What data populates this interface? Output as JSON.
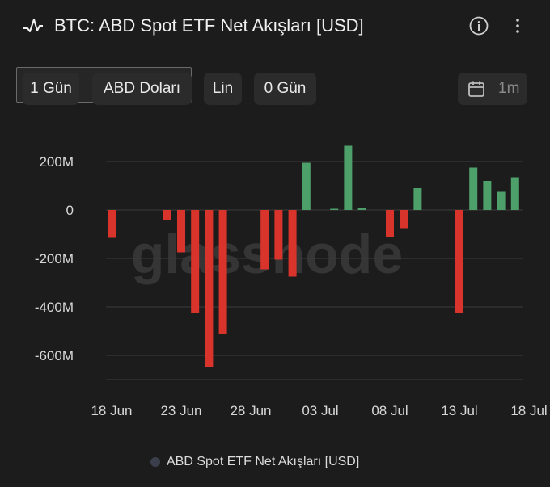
{
  "header": {
    "title": "BTC: ABD Spot ETF Net Akışları [USD]",
    "icons": [
      "pulse-icon",
      "info-icon",
      "more-icon"
    ]
  },
  "toolbar": {
    "interval_label": "1 Gün",
    "currency_label": "ABD Doları",
    "scale_label": "Lin",
    "smoothing_label": "0 Gün",
    "range_label": "1m"
  },
  "colors": {
    "positive": "#4ea06a",
    "negative": "#d9342b",
    "background": "#1c1c1c"
  },
  "chart_data": {
    "type": "bar",
    "title": "BTC: ABD Spot ETF Net Akışları [USD]",
    "x_ticks": [
      "18 Jun",
      "23 Jun",
      "28 Jun",
      "03 Jul",
      "08 Jul",
      "13 Jul",
      "18 Jul"
    ],
    "y_ticks": [
      "200M",
      "0",
      "-200M",
      "-400M",
      "-600M"
    ],
    "ylim": [
      -700,
      280
    ],
    "y_unit": "M USD",
    "grid": true,
    "legend": "bottom",
    "series": [
      {
        "name": "ABD Spot ETF Net Akışları [USD]",
        "x": [
          "18 Jun",
          "19 Jun",
          "20 Jun",
          "21 Jun",
          "22 Jun",
          "23 Jun",
          "24 Jun",
          "25 Jun",
          "26 Jun",
          "27 Jun",
          "28 Jun",
          "29 Jun",
          "30 Jun",
          "01 Jul",
          "02 Jul",
          "03 Jul",
          "04 Jul",
          "05 Jul",
          "06 Jul",
          "07 Jul",
          "08 Jul",
          "09 Jul",
          "10 Jul",
          "11 Jul",
          "12 Jul",
          "13 Jul",
          "14 Jul",
          "15 Jul",
          "16 Jul",
          "17 Jul",
          "18 Jul"
        ],
        "values": [
          -115,
          0,
          0,
          0,
          -40,
          -175,
          -425,
          -650,
          -510,
          0,
          0,
          -245,
          -205,
          -275,
          195,
          0,
          5,
          265,
          8,
          0,
          -110,
          -75,
          90,
          0,
          0,
          -425,
          175,
          120,
          75,
          135,
          0
        ]
      }
    ]
  },
  "legend": {
    "label": "ABD Spot ETF Net Akışları [USD]"
  }
}
